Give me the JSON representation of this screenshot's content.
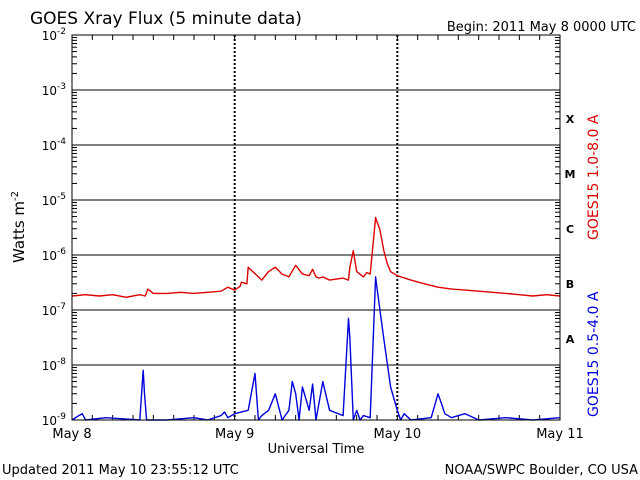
{
  "chart_data": {
    "type": "line",
    "title": "GOES Xray Flux (5 minute data)",
    "begin_label": "Begin:  2011 May 8 0000 UTC",
    "xlabel": "Universal Time",
    "ylabel": "Watts m",
    "ylabel_sup": "-2",
    "y_scale": "log",
    "ylim": [
      1e-09,
      0.01
    ],
    "y_ticks": [
      {
        "base": "10",
        "exp": "-9",
        "value": 1e-09
      },
      {
        "base": "10",
        "exp": "-8",
        "value": 1e-08
      },
      {
        "base": "10",
        "exp": "-7",
        "value": 1e-07
      },
      {
        "base": "10",
        "exp": "-6",
        "value": 1e-06
      },
      {
        "base": "10",
        "exp": "-5",
        "value": 1e-05
      },
      {
        "base": "10",
        "exp": "-4",
        "value": 0.0001
      },
      {
        "base": "10",
        "exp": "-3",
        "value": 0.001
      },
      {
        "base": "10",
        "exp": "-2",
        "value": 0.01
      }
    ],
    "xlim": [
      "2011-05-08 00:00",
      "2011-05-11 00:00"
    ],
    "x_ticks": [
      {
        "label": "May 8",
        "value": "2011-05-08"
      },
      {
        "label": "May 9",
        "value": "2011-05-09"
      },
      {
        "label": "May 10",
        "value": "2011-05-10"
      },
      {
        "label": "May 11",
        "value": "2011-05-11"
      }
    ],
    "flare_classes": [
      {
        "label": "A",
        "value": 3e-08
      },
      {
        "label": "B",
        "value": 3e-07
      },
      {
        "label": "C",
        "value": 3e-06
      },
      {
        "label": "M",
        "value": 3e-05
      },
      {
        "label": "X",
        "value": 0.0003
      }
    ],
    "grid": true,
    "series": [
      {
        "name": "GOES15 1.0-8.0 A",
        "color": "#dd0000",
        "x_hours": [
          0,
          2,
          4,
          6,
          8,
          10,
          10.8,
          11.2,
          12,
          14,
          16,
          18,
          20,
          22,
          23,
          24,
          24.8,
          25,
          25.8,
          26,
          27.5,
          28,
          29,
          30,
          31,
          32,
          33,
          34,
          35,
          35.5,
          36,
          36.5,
          37,
          38,
          40,
          40.8,
          41,
          41.5,
          42,
          43,
          43.5,
          44,
          44.8,
          45,
          45.4,
          46,
          46.5,
          47,
          48,
          50,
          52,
          54,
          56,
          58,
          60,
          62,
          64,
          66,
          68,
          70,
          72
        ],
        "values": [
          1.8e-07,
          1.9e-07,
          1.8e-07,
          1.9e-07,
          1.7e-07,
          1.9e-07,
          1.8e-07,
          2.4e-07,
          2e-07,
          2e-07,
          2.1e-07,
          2e-07,
          2.1e-07,
          2.2e-07,
          2.6e-07,
          2.3e-07,
          2.7e-07,
          3.2e-07,
          3e-07,
          6e-07,
          4e-07,
          3.5e-07,
          5e-07,
          6e-07,
          4.5e-07,
          4e-07,
          6.5e-07,
          4.5e-07,
          4.2e-07,
          5.5e-07,
          4e-07,
          3.8e-07,
          4e-07,
          3.5e-07,
          3.8e-07,
          3.5e-07,
          6e-07,
          1.2e-06,
          5e-07,
          4e-07,
          4.8e-07,
          4.5e-07,
          4.8e-06,
          4e-06,
          3e-06,
          1.2e-06,
          7e-07,
          5e-07,
          4.2e-07,
          3.5e-07,
          3e-07,
          2.6e-07,
          2.4e-07,
          2.3e-07,
          2.2e-07,
          2.1e-07,
          2e-07,
          1.9e-07,
          1.8e-07,
          1.9e-07,
          1.8e-07
        ]
      },
      {
        "name": "GOES15 0.5-4.0 A",
        "color": "#0000dd",
        "x_hours": [
          0,
          1,
          1.5,
          2,
          5,
          10,
          10.5,
          10.7,
          11,
          14,
          18,
          20,
          22,
          22.5,
          23,
          24,
          26,
          27,
          27.5,
          28,
          29,
          30,
          31,
          32,
          32.5,
          33,
          33.5,
          34,
          35,
          35.5,
          36,
          37,
          38,
          40,
          40.8,
          41,
          41.5,
          42,
          42.5,
          43,
          44,
          44.8,
          45,
          46,
          47,
          48,
          48.5,
          49,
          50,
          53,
          54,
          54.5,
          55,
          56,
          57,
          58,
          60,
          64,
          68,
          72
        ],
        "values": [
          1e-09,
          1.2e-09,
          1.3e-09,
          1e-09,
          1.1e-09,
          1e-09,
          8e-09,
          3e-09,
          1e-09,
          1e-09,
          1.1e-09,
          1e-09,
          1.2e-09,
          1.4e-09,
          1.1e-09,
          1.3e-09,
          1.5e-09,
          7e-09,
          1e-09,
          1.2e-09,
          1.5e-09,
          3e-09,
          1e-09,
          1.5e-09,
          5e-09,
          3e-09,
          1e-09,
          4e-09,
          1.5e-09,
          4.5e-09,
          1e-09,
          5e-09,
          1.5e-09,
          1.2e-09,
          7e-08,
          3e-08,
          1e-09,
          1.5e-09,
          1e-09,
          1.2e-09,
          1.1e-09,
          4e-07,
          2.5e-07,
          3e-08,
          4e-09,
          1.5e-09,
          1e-09,
          1.3e-09,
          1e-09,
          1.1e-09,
          3e-09,
          2e-09,
          1.3e-09,
          1.1e-09,
          1.2e-09,
          1.3e-09,
          1e-09,
          1.1e-09,
          1e-09,
          1.1e-09
        ]
      }
    ]
  },
  "footer": {
    "updated": "Updated 2011 May 10 23:55:12 UTC",
    "credit": "NOAA/SWPC Boulder, CO USA"
  }
}
